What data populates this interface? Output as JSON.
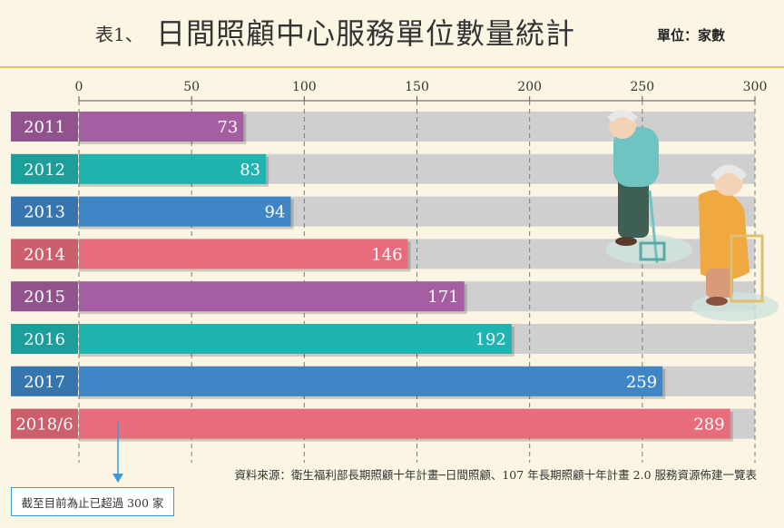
{
  "title": {
    "prefix": "表1、",
    "main": "日間照顧中心服務單位數量統計"
  },
  "unit_label": "單位：家數",
  "source": "資料來源：衛生福利部長期照顧十年計畫─日間照顧、107 年長期照顧十年計畫 2.0 服務資源佈建一覽表",
  "note": "截至目前為止已超過 300 家",
  "colors": {
    "purple": "#a65ea2",
    "teal": "#20b4b0",
    "blue": "#3f86c7",
    "pink": "#e86d7c",
    "background": "#fbf6e3",
    "track": "#cfcfcf"
  },
  "chart_data": {
    "type": "bar",
    "orientation": "horizontal",
    "categories": [
      "2011",
      "2012",
      "2013",
      "2014",
      "2015",
      "2016",
      "2017",
      "2018/6"
    ],
    "values": [
      73,
      83,
      94,
      146,
      171,
      192,
      259,
      289
    ],
    "xlim": [
      0,
      300
    ],
    "xticks": [
      0,
      50,
      100,
      150,
      200,
      250,
      300
    ],
    "grid": "dashed vertical at ticks",
    "bar_colors": [
      "purple",
      "teal",
      "blue",
      "pink",
      "purple",
      "teal",
      "blue",
      "pink"
    ],
    "data_labels": true
  }
}
